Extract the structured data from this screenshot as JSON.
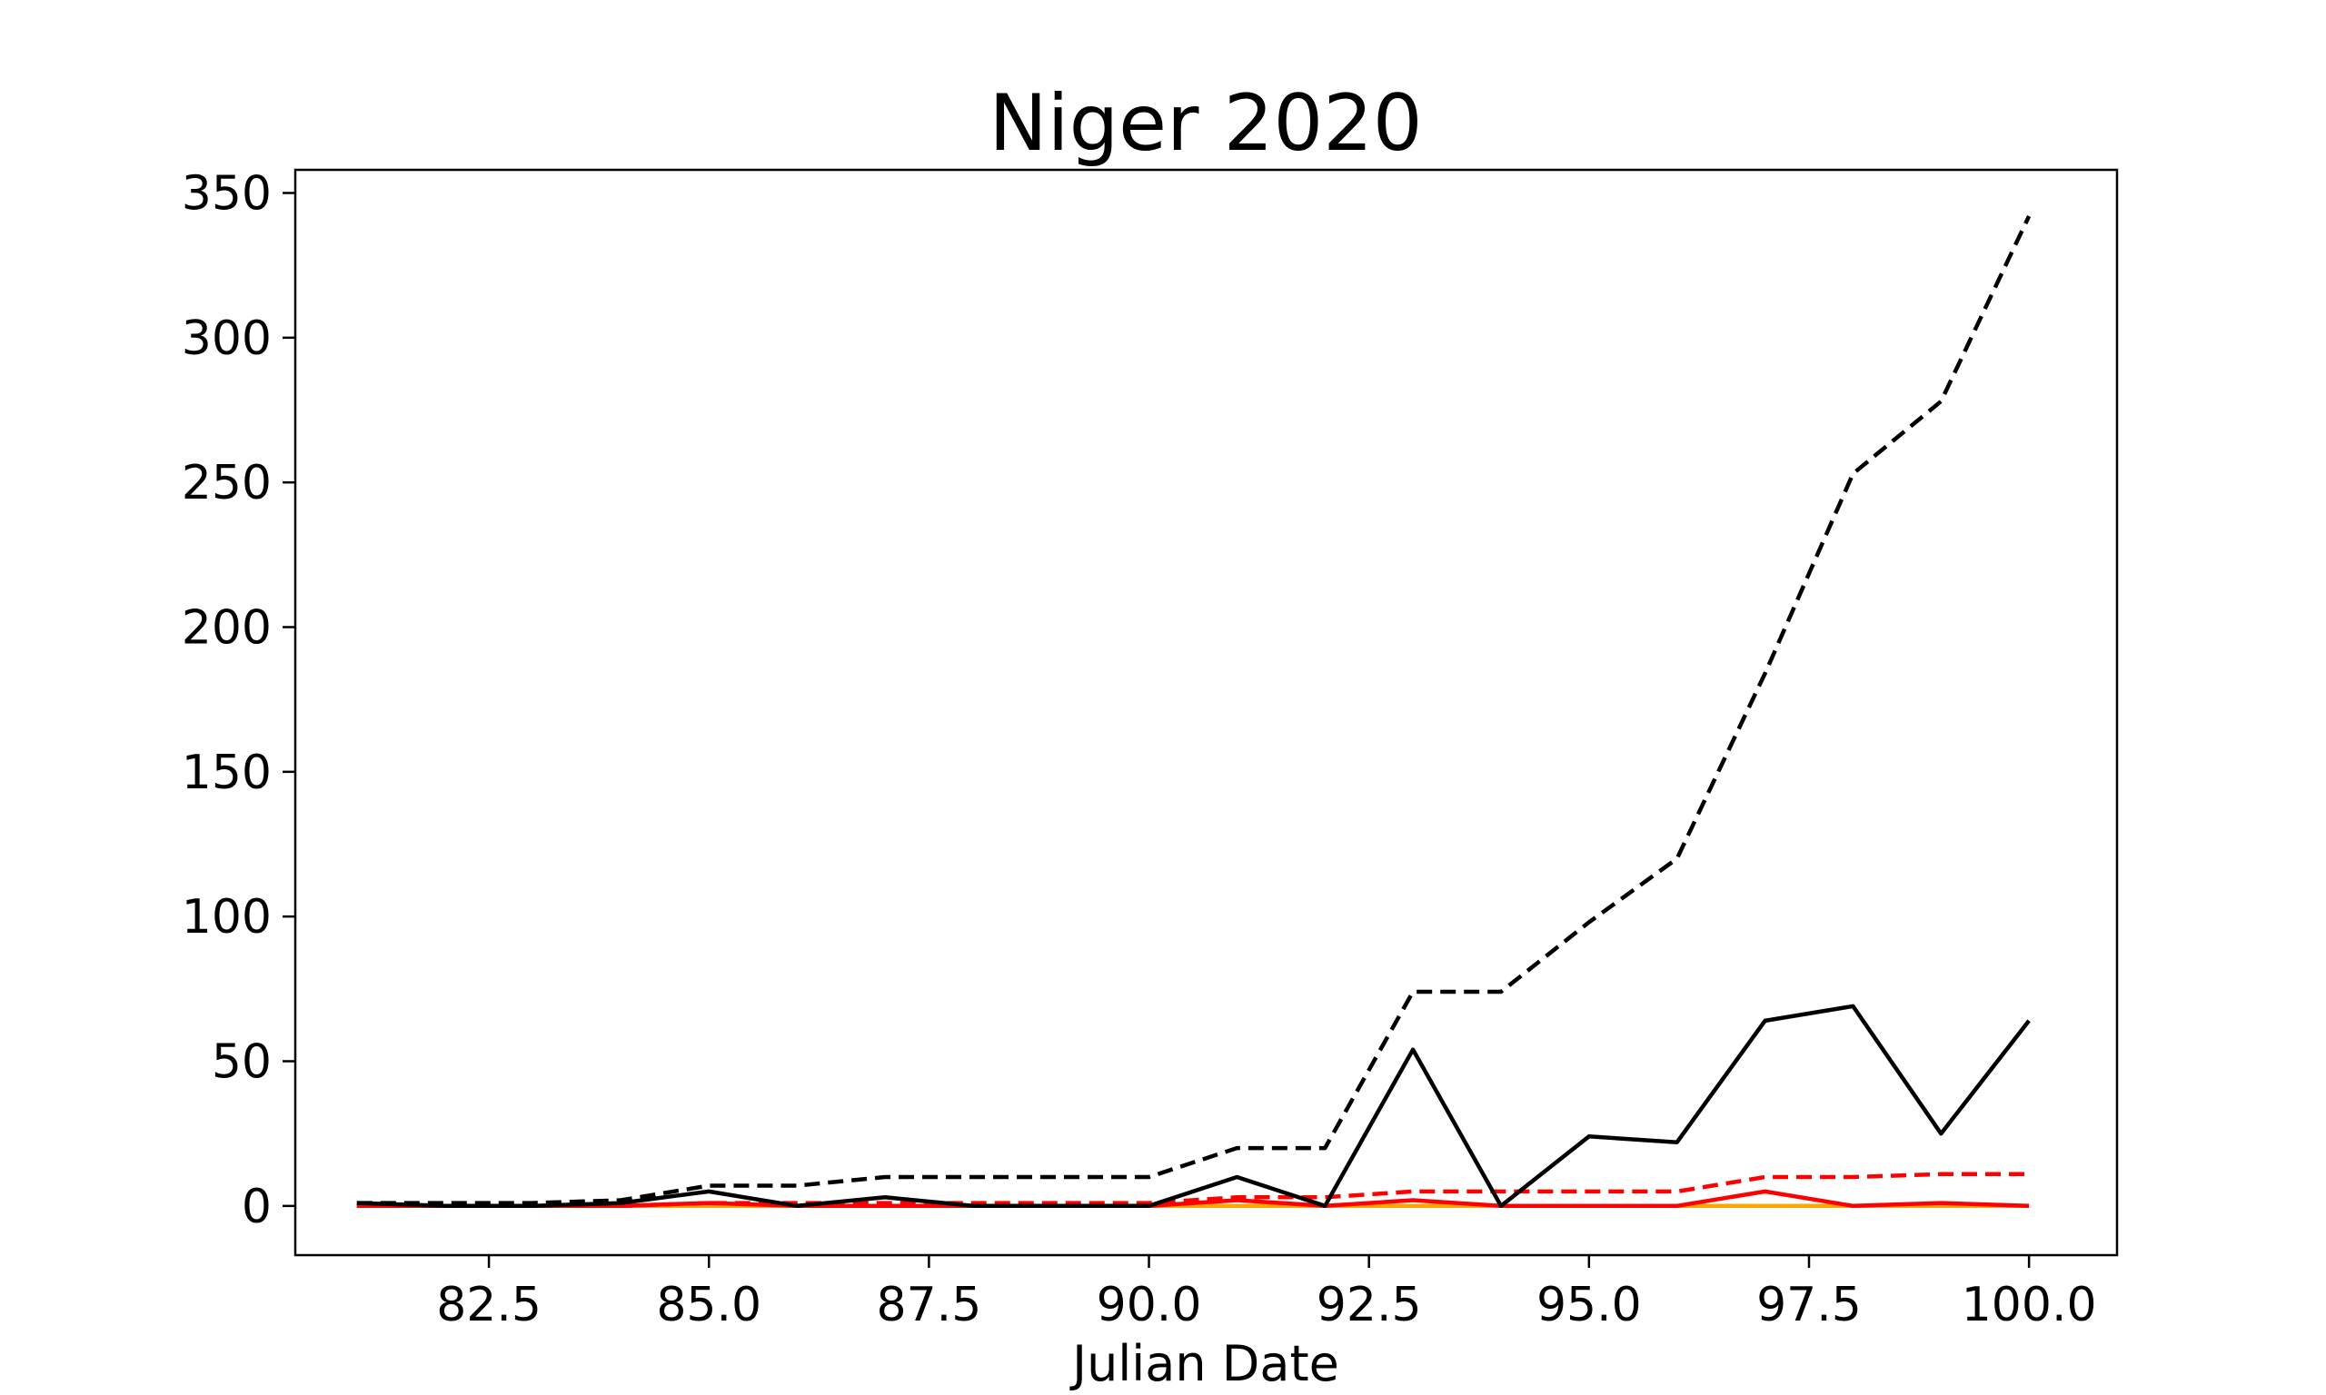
{
  "chart_data": {
    "type": "line",
    "title": "Niger 2020",
    "xlabel": "Julian Date",
    "ylabel": "",
    "xlim": [
      80.3,
      101.0
    ],
    "ylim": [
      -17,
      358
    ],
    "xticks": [
      82.5,
      85.0,
      87.5,
      90.0,
      92.5,
      95.0,
      97.5,
      100.0
    ],
    "xtick_labels": [
      "82.5",
      "85.0",
      "87.5",
      "90.0",
      "92.5",
      "95.0",
      "97.5",
      "100.0"
    ],
    "yticks": [
      0,
      50,
      100,
      150,
      200,
      250,
      300,
      350
    ],
    "ytick_labels": [
      "0",
      "50",
      "100",
      "150",
      "200",
      "250",
      "300",
      "350"
    ],
    "grid": false,
    "x": [
      81,
      82,
      83,
      84,
      85,
      86,
      87,
      88,
      89,
      90,
      91,
      92,
      93,
      94,
      95,
      96,
      97,
      98,
      99,
      100
    ],
    "series": [
      {
        "color": "#000000",
        "dash": "dashed",
        "values": [
          1,
          1,
          1,
          2,
          7,
          7,
          10,
          10,
          10,
          10,
          20,
          20,
          74,
          74,
          98,
          120,
          184,
          253,
          278,
          342
        ]
      },
      {
        "color": "#000000",
        "dash": "solid",
        "values": [
          1,
          0,
          0,
          1,
          5,
          0,
          3,
          0,
          0,
          0,
          10,
          0,
          54,
          0,
          24,
          22,
          64,
          69,
          25,
          64
        ]
      },
      {
        "color": "#ff0000",
        "dash": "dashed",
        "values": [
          0,
          0,
          0,
          0,
          1,
          1,
          1,
          1,
          1,
          1,
          3,
          3,
          5,
          5,
          5,
          5,
          10,
          10,
          11,
          11
        ]
      },
      {
        "color": "#ff0000",
        "dash": "solid",
        "values": [
          0,
          0,
          0,
          0,
          1,
          0,
          0,
          0,
          0,
          0,
          2,
          0,
          2,
          0,
          0,
          0,
          5,
          0,
          1,
          0
        ]
      },
      {
        "color": "#ffa500",
        "dash": "solid",
        "values": [
          0,
          0,
          0,
          0,
          0,
          0,
          0,
          0,
          0,
          0,
          0,
          0,
          0,
          0,
          0,
          0,
          0,
          0,
          0,
          0
        ]
      }
    ]
  }
}
